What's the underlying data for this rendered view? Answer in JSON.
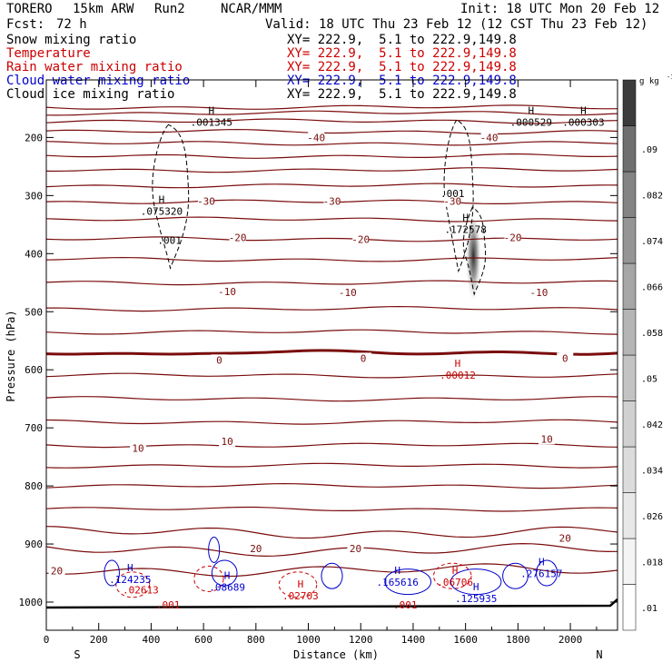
{
  "header": {
    "model": "TORERO",
    "resolution": "15km ARW",
    "run": "Run2",
    "org": "NCAR/MMM",
    "init": "Init: 18 UTC Mon 20 Feb 12",
    "fcst_label": "Fcst:",
    "fcst_value": "72 h",
    "valid": "Valid: 18 UTC Thu 23 Feb 12 (12 CST Thu 23 Feb 12)"
  },
  "fields": [
    {
      "name": "Snow mixing ratio",
      "color": "#000000",
      "xy": "XY= 222.9,  5.1 to 222.9,149.8"
    },
    {
      "name": "Temperature",
      "color": "#cc0000",
      "xy": "XY= 222.9,  5.1 to 222.9,149.8"
    },
    {
      "name": "Rain water mixing ratio",
      "color": "#cc0000",
      "xy": "XY= 222.9,  5.1 to 222.9,149.8"
    },
    {
      "name": "Cloud water mixing ratio",
      "color": "#0000cc",
      "xy": "XY= 222.9,  5.1 to 222.9,149.8"
    },
    {
      "name": "Cloud ice mixing ratio",
      "color": "#000000",
      "xy": "XY= 222.9,  5.1 to 222.9,149.8"
    }
  ],
  "colorbar": {
    "unit": "g kg",
    "unit_exp": "-1",
    "ticks": [
      ".01",
      ".018",
      ".026",
      ".034",
      ".042",
      ".05",
      ".058",
      ".066",
      ".074",
      ".082",
      ".09"
    ],
    "colors": [
      "#ffffff",
      "#f4f4f4",
      "#e8e8e8",
      "#dcdcdc",
      "#d0d0d0",
      "#c3c3c3",
      "#b5b5b5",
      "#a6a6a6",
      "#959595",
      "#838383",
      "#6f6f6f",
      "#3c3c3c"
    ]
  },
  "chart_data": {
    "type": "contour",
    "xlabel": "Distance (km)",
    "ylabel": "Pressure (hPa)",
    "xlim": [
      0,
      2180
    ],
    "ylim": [
      1050,
      140
    ],
    "x_ticks": [
      "0",
      "200",
      "400",
      "600",
      "800",
      "1000",
      "1200",
      "1400",
      "1600",
      "1800",
      "2000"
    ],
    "x_tick_values": [
      0,
      200,
      400,
      600,
      800,
      1000,
      1200,
      1400,
      1600,
      1800,
      2000
    ],
    "y_ticks": [
      "200",
      "300",
      "400",
      "500",
      "600",
      "700",
      "800",
      "900",
      "1000"
    ],
    "y_tick_values": [
      200,
      300,
      400,
      500,
      600,
      700,
      800,
      900,
      1000
    ],
    "left_end": "S",
    "right_end": "N",
    "isotherms": [
      {
        "p": 148
      },
      {
        "p": 158
      },
      {
        "p": 172
      },
      {
        "p": 190
      },
      {
        "p": 210
      },
      {
        "p": 232
      },
      {
        "p": 256
      },
      {
        "p": 283
      },
      {
        "p": 311
      },
      {
        "p": 341
      },
      {
        "p": 375
      },
      {
        "p": 410
      },
      {
        "p": 450
      },
      {
        "p": 495
      },
      {
        "p": 535
      },
      {
        "p": 570,
        "zero": true
      },
      {
        "p": 610
      },
      {
        "p": 650
      },
      {
        "p": 690
      },
      {
        "p": 730
      },
      {
        "p": 765
      },
      {
        "p": 800
      },
      {
        "p": 840
      },
      {
        "p": 880
      },
      {
        "p": 910
      },
      {
        "p": 945
      }
    ],
    "temperature_labels": [
      {
        "text": "-40",
        "x": 1030,
        "p": 200
      },
      {
        "text": "-40",
        "x": 1690,
        "p": 200
      },
      {
        "text": "-30",
        "x": 610,
        "p": 310
      },
      {
        "text": "-30",
        "x": 1090,
        "p": 310
      },
      {
        "text": "-30",
        "x": 1550,
        "p": 310
      },
      {
        "text": "-20",
        "x": 730,
        "p": 372
      },
      {
        "text": "-20",
        "x": 1200,
        "p": 375
      },
      {
        "text": "-20",
        "x": 1780,
        "p": 372
      },
      {
        "text": "-10",
        "x": 690,
        "p": 465
      },
      {
        "text": "-10",
        "x": 1150,
        "p": 467
      },
      {
        "text": "-10",
        "x": 1880,
        "p": 467
      },
      {
        "text": "0",
        "x": 660,
        "p": 583
      },
      {
        "text": "0",
        "x": 1210,
        "p": 580
      },
      {
        "text": "0",
        "x": 1980,
        "p": 580
      },
      {
        "text": "10",
        "x": 350,
        "p": 735
      },
      {
        "text": "10",
        "x": 690,
        "p": 723
      },
      {
        "text": "10",
        "x": 1910,
        "p": 719
      },
      {
        "text": "20",
        "x": 40,
        "p": 946
      },
      {
        "text": "20",
        "x": 800,
        "p": 908
      },
      {
        "text": "20",
        "x": 1180,
        "p": 908
      },
      {
        "text": "20",
        "x": 1980,
        "p": 890
      }
    ],
    "maxima": [
      {
        "label": "H",
        "value": ".001345",
        "x": 630,
        "p": 163,
        "color": "#000000"
      },
      {
        "label": "H",
        "value": ".000529",
        "x": 1850,
        "p": 163,
        "color": "#000000"
      },
      {
        "label": "H",
        "value": ".000303",
        "x": 2050,
        "p": 163,
        "color": "#000000"
      },
      {
        "label": "H",
        "value": ".075320",
        "x": 440,
        "p": 316,
        "color": "#000000"
      },
      {
        "label": "H",
        "value": ".172578",
        "x": 1600,
        "p": 347,
        "color": "#000000"
      },
      {
        "label": "H",
        "value": ".00012",
        "x": 1570,
        "p": 598,
        "color": "#cc0000"
      },
      {
        "label": "H",
        "value": ".124235",
        "x": 320,
        "p": 950,
        "color": "#0000cc"
      },
      {
        "label": "",
        "value": ".02613",
        "x": 360,
        "p": 968,
        "color": "#cc0000"
      },
      {
        "label": "H",
        "value": ".08689",
        "x": 690,
        "p": 963,
        "color": "#0000cc"
      },
      {
        "label": "H",
        "value": ".02703",
        "x": 970,
        "p": 978,
        "color": "#cc0000"
      },
      {
        "label": "H",
        "value": ".165616",
        "x": 1340,
        "p": 955,
        "color": "#0000cc"
      },
      {
        "label": "H",
        "value": ".06706",
        "x": 1560,
        "p": 955,
        "color": "#cc0000"
      },
      {
        "label": "H",
        "value": ".276157",
        "x": 1890,
        "p": 940,
        "color": "#0000cc"
      },
      {
        "label": "H",
        "value": ".125935",
        "x": 1640,
        "p": 983,
        "color": "#0000cc"
      }
    ],
    "contour_labels": [
      {
        "text": ".001",
        "x": 470,
        "p": 377,
        "color": "#000000"
      },
      {
        "text": ".001",
        "x": 1550,
        "p": 296,
        "color": "#000000"
      },
      {
        "text": ".001",
        "x": 465,
        "p": 1005,
        "color": "#cc0000"
      },
      {
        "text": ".001",
        "x": 1370,
        "p": 1005,
        "color": "#cc0000"
      }
    ],
    "snow_cells": [
      {
        "x_center": 1630,
        "p_top": 330,
        "p_bottom": 480,
        "p_core": 390,
        "max": 0.09
      }
    ]
  }
}
